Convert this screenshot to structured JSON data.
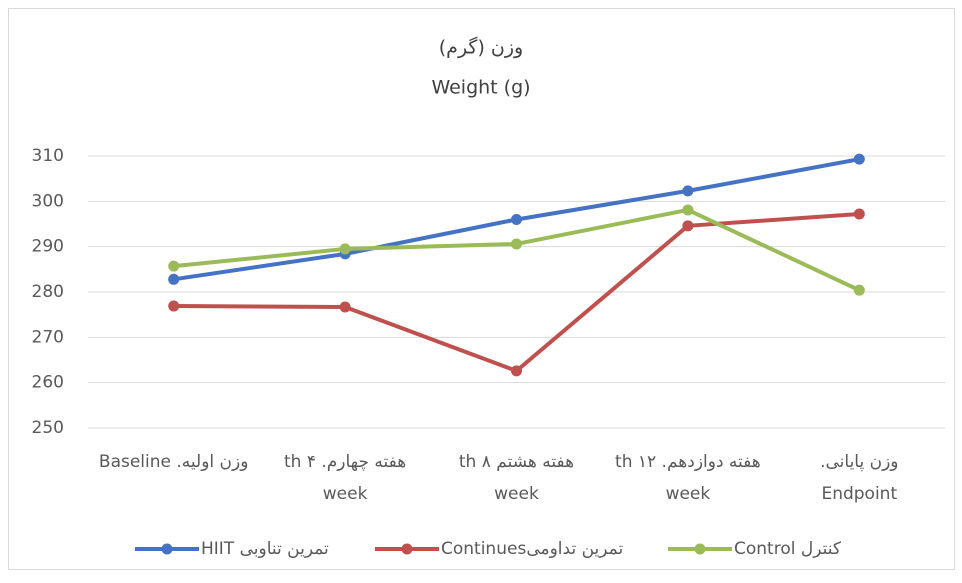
{
  "chart_data": {
    "type": "line",
    "title": "وزن (گرم)",
    "subtitle": "Weight (g)",
    "categories": [
      [
        "وزن اولیه. Baseline"
      ],
      [
        "هفته چهارم. ۴ th",
        "week"
      ],
      [
        "هفته هشتم ۸ th",
        "week"
      ],
      [
        "هفته دوازدهم. ۱۲ th",
        "week"
      ],
      [
        "وزن پایانی.",
        "Endpoint"
      ]
    ],
    "series": [
      {
        "name": "تمرین تناوبی HIIT",
        "color": "#4472c4",
        "values": [
          282.8,
          288.4,
          296.0,
          302.3,
          309.3
        ]
      },
      {
        "name": "تمرین تداومیContinues",
        "color": "#c0504d",
        "values": [
          276.9,
          276.7,
          262.6,
          294.6,
          297.2
        ]
      },
      {
        "name": "کنترل Control",
        "color": "#9bbb59",
        "values": [
          285.7,
          289.5,
          290.6,
          298.1,
          280.4
        ]
      }
    ],
    "ylim": [
      250,
      310
    ],
    "yticks": [
      250,
      260,
      270,
      280,
      290,
      300,
      310
    ],
    "grid": true,
    "legend": "bottom"
  }
}
